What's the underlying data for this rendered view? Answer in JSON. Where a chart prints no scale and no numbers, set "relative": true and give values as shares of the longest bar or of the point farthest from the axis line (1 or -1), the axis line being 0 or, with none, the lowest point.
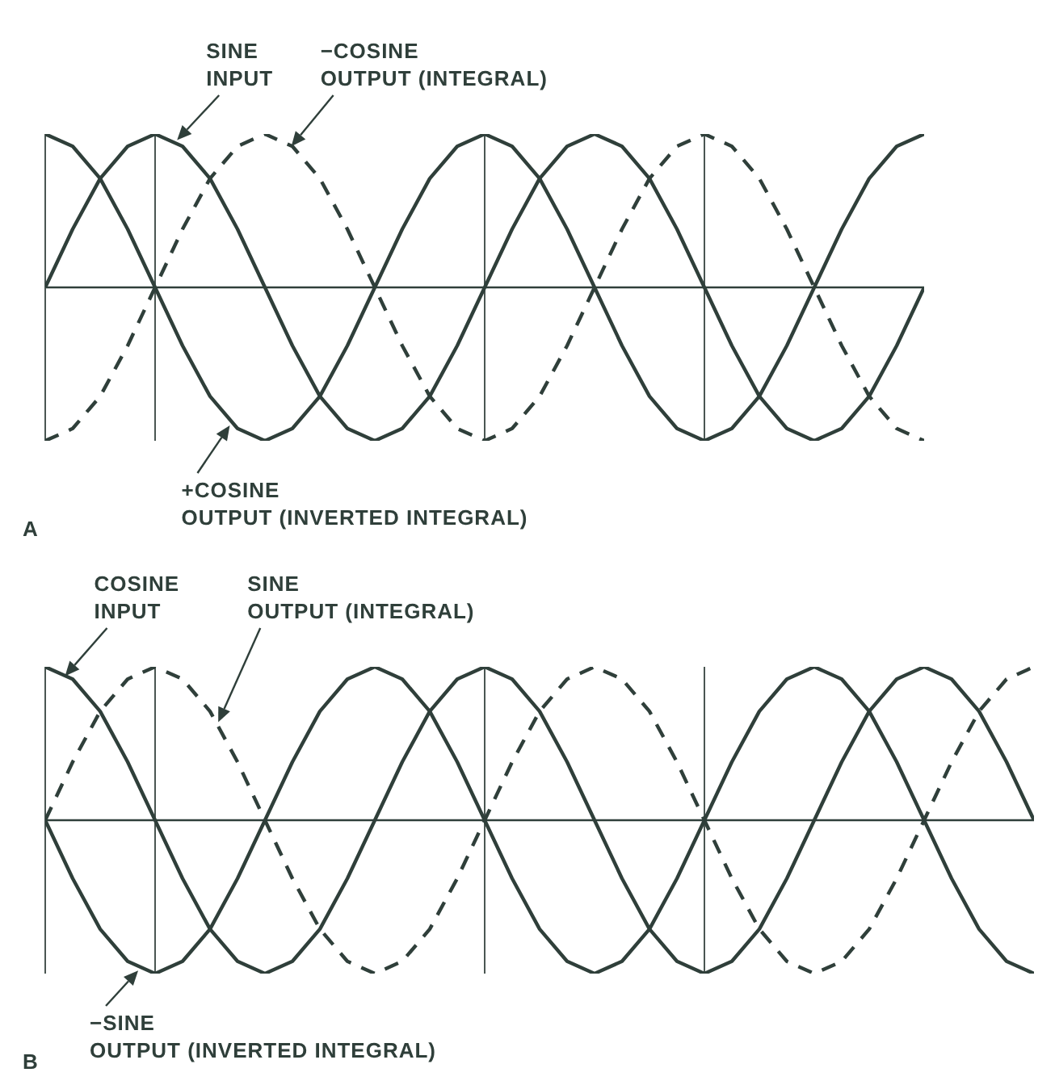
{
  "chart_data": [
    {
      "type": "line",
      "title": "A",
      "relative": true,
      "grid": "x",
      "categories": [
        null,
        null,
        null,
        null,
        null,
        null,
        null,
        null,
        null,
        null,
        null,
        null,
        null,
        null,
        null,
        null,
        null,
        null,
        null,
        null,
        null,
        null,
        null,
        null,
        null,
        null,
        null,
        null,
        null,
        null,
        null,
        null,
        null
      ],
      "series": [
        {
          "color": "#2f3f3a",
          "line_style": "solid",
          "values": [
            0,
            0.38,
            0.71,
            0.92,
            1,
            0.92,
            0.71,
            0.38,
            0,
            -0.38,
            -0.71,
            -0.92,
            -1,
            -0.92,
            -0.71,
            -0.38,
            0,
            0.38,
            0.71,
            0.92,
            1,
            0.92,
            0.71,
            0.38,
            0,
            -0.38,
            -0.71,
            -0.92,
            -1,
            -0.92,
            -0.71,
            -0.38,
            0
          ]
        },
        {
          "color": "#2f3f3a",
          "line_style": "solid",
          "values": [
            1,
            0.92,
            0.71,
            0.38,
            0,
            -0.38,
            -0.71,
            -0.92,
            -1,
            -0.92,
            -0.71,
            -0.38,
            0,
            0.38,
            0.71,
            0.92,
            1,
            0.92,
            0.71,
            0.38,
            0,
            -0.38,
            -0.71,
            -0.92,
            -1,
            -0.92,
            -0.71,
            -0.38,
            0,
            0.38,
            0.71,
            0.92,
            1
          ]
        },
        {
          "color": "#2f3f3a",
          "line_style": "dashed",
          "values": [
            -1,
            -0.92,
            -0.71,
            -0.38,
            0,
            0.38,
            0.71,
            0.92,
            1,
            0.92,
            0.71,
            0.38,
            0,
            -0.38,
            -0.71,
            -0.92,
            -1,
            -0.92,
            -0.71,
            -0.38,
            0,
            0.38,
            0.71,
            0.92,
            1,
            0.92,
            0.71,
            0.38,
            0,
            -0.38,
            -0.71,
            -0.92,
            -1
          ]
        }
      ],
      "annotations": [
        "SINE\nINPUT",
        "−COSINE\nOUTPUT (INTEGRAL)",
        "+COSINE\nOUTPUT (INVERTED INTEGRAL)"
      ]
    },
    {
      "type": "line",
      "title": "B",
      "relative": true,
      "grid": "x",
      "categories": [
        null,
        null,
        null,
        null,
        null,
        null,
        null,
        null,
        null,
        null,
        null,
        null,
        null,
        null,
        null,
        null,
        null,
        null,
        null,
        null,
        null,
        null,
        null,
        null,
        null,
        null,
        null,
        null,
        null,
        null,
        null,
        null,
        null,
        null,
        null,
        null,
        null
      ],
      "series": [
        {
          "color": "#2f3f3a",
          "line_style": "solid",
          "values": [
            1,
            0.92,
            0.71,
            0.38,
            0,
            -0.38,
            -0.71,
            -0.92,
            -1,
            -0.92,
            -0.71,
            -0.38,
            0,
            0.38,
            0.71,
            0.92,
            1,
            0.92,
            0.71,
            0.38,
            0,
            -0.38,
            -0.71,
            -0.92,
            -1,
            -0.92,
            -0.71,
            -0.38,
            0,
            0.38,
            0.71,
            0.92,
            1,
            0.92,
            0.71,
            0.38,
            0
          ]
        },
        {
          "color": "#2f3f3a",
          "line_style": "solid",
          "values": [
            0,
            -0.38,
            -0.71,
            -0.92,
            -1,
            -0.92,
            -0.71,
            -0.38,
            0,
            0.38,
            0.71,
            0.92,
            1,
            0.92,
            0.71,
            0.38,
            0,
            -0.38,
            -0.71,
            -0.92,
            -1,
            -0.92,
            -0.71,
            -0.38,
            0,
            0.38,
            0.71,
            0.92,
            1,
            0.92,
            0.71,
            0.38,
            0,
            -0.38,
            -0.71,
            -0.92,
            -1
          ]
        },
        {
          "color": "#2f3f3a",
          "line_style": "dashed",
          "values": [
            0,
            0.38,
            0.71,
            0.92,
            1,
            0.92,
            0.71,
            0.38,
            0,
            -0.38,
            -0.71,
            -0.92,
            -1,
            -0.92,
            -0.71,
            -0.38,
            0,
            0.38,
            0.71,
            0.92,
            1,
            0.92,
            0.71,
            0.38,
            0,
            -0.38,
            -0.71,
            -0.92,
            -1,
            -0.92,
            -0.71,
            -0.38,
            0,
            0.38,
            0.71,
            0.92,
            1
          ]
        }
      ],
      "annotations": [
        "COSINE\nINPUT",
        "SINE\nOUTPUT (INTEGRAL)",
        "−SINE\nOUTPUT (INVERTED INTEGRAL)"
      ]
    }
  ]
}
